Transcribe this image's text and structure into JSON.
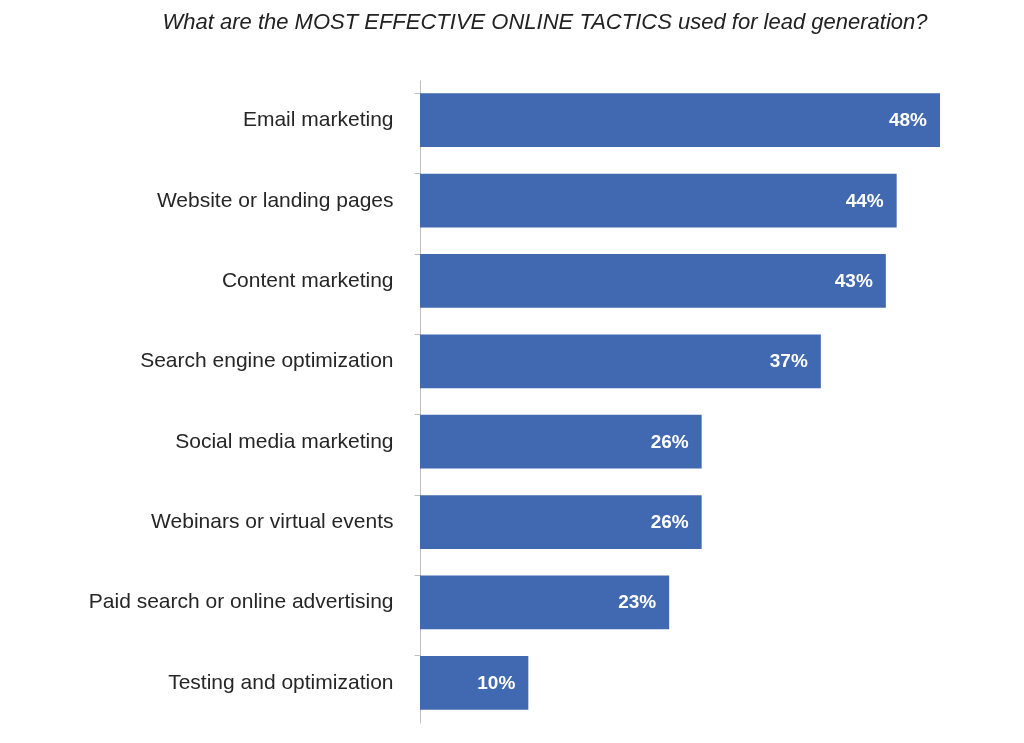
{
  "chart_data": {
    "type": "bar",
    "title": "What are the MOST EFFECTIVE ONLINE TACTICS used for lead generation?",
    "orientation": "horizontal",
    "categories": [
      "Email marketing",
      "Website or landing pages",
      "Content marketing",
      "Search engine optimization",
      "Social media marketing",
      "Webinars or virtual events",
      "Paid search or online advertising",
      "Testing and optimization"
    ],
    "values": [
      48,
      44,
      43,
      37,
      26,
      26,
      23,
      10
    ],
    "value_labels": [
      "48%",
      "44%",
      "43%",
      "37%",
      "26%",
      "26%",
      "23%",
      "10%"
    ],
    "color": "#4169b1",
    "tick_labels": "y"
  }
}
